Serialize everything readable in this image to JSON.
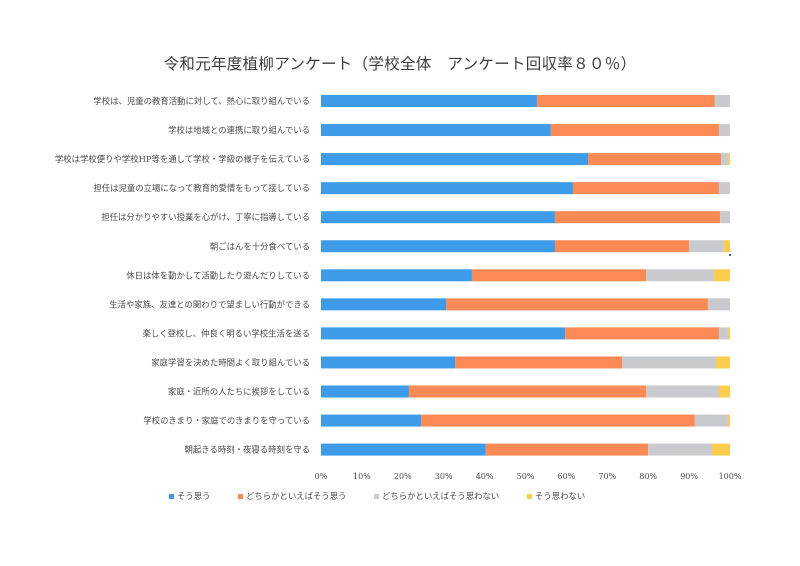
{
  "chart_data": {
    "type": "bar",
    "orientation": "horizontal",
    "stacked": "percent",
    "title": "令和元年度植柳アンケート（学校全体　アンケート回収率８０％）",
    "xlabel": "",
    "ylabel": "",
    "xlim": [
      0,
      100
    ],
    "x_ticks": [
      "0%",
      "10%",
      "20%",
      "30%",
      "40%",
      "50%",
      "60%",
      "70%",
      "80%",
      "90%",
      "100%"
    ],
    "grid": false,
    "legend_position": "bottom",
    "categories": [
      "学校は、児童の教育活動に対して、熱心に取り組んでいる",
      "学校は地域との連携に取り組んでいる",
      "学校は学校便りや学校HP等を通して学校・学級の様子を伝えている",
      "担任は児童の立場になって教育的愛情をもって接している",
      "担任は分かりやすい授業を心がけ、丁寧に指導している",
      "朝ごはんを十分食べている",
      "休日は体を動かして活動したり遊んだりしている",
      "生活や家族、友達との関わりで望ましい行動ができる",
      "楽しく登校し、仲良く明るい学校生活を送る",
      "家庭学習を決めた時間よく取り組んでいる",
      "家庭・近所の人たちに挨拶をしている",
      "学校のきまり・家庭でのきまりを守っている",
      "朝起きる時刻・夜寝る時刻を守る"
    ],
    "series": [
      {
        "name": "そう思う",
        "color": "#3d9be9",
        "values": [
          52.8,
          56.2,
          65.3,
          61.6,
          57.2,
          57.2,
          36.9,
          30.6,
          59.7,
          32.8,
          21.5,
          24.5,
          40.3
        ]
      },
      {
        "name": "どちらかといえばそう思う",
        "color": "#fb8a55",
        "values": [
          43.5,
          41.1,
          32.5,
          35.7,
          40.4,
          32.8,
          42.6,
          64.0,
          37.6,
          40.8,
          58.0,
          66.9,
          39.7
        ]
      },
      {
        "name": "どちらかといえばそう思わない",
        "color": "#c8cacd",
        "values": [
          3.7,
          2.7,
          1.8,
          2.7,
          2.4,
          8.5,
          16.6,
          5.4,
          2.2,
          23.0,
          17.8,
          8.1,
          15.6
        ]
      },
      {
        "name": "そう思わない",
        "color": "#fccd4c",
        "values": [
          0.0,
          0.0,
          0.4,
          0.0,
          0.0,
          1.5,
          3.9,
          0.0,
          0.5,
          3.4,
          2.7,
          0.5,
          4.4
        ]
      }
    ]
  }
}
